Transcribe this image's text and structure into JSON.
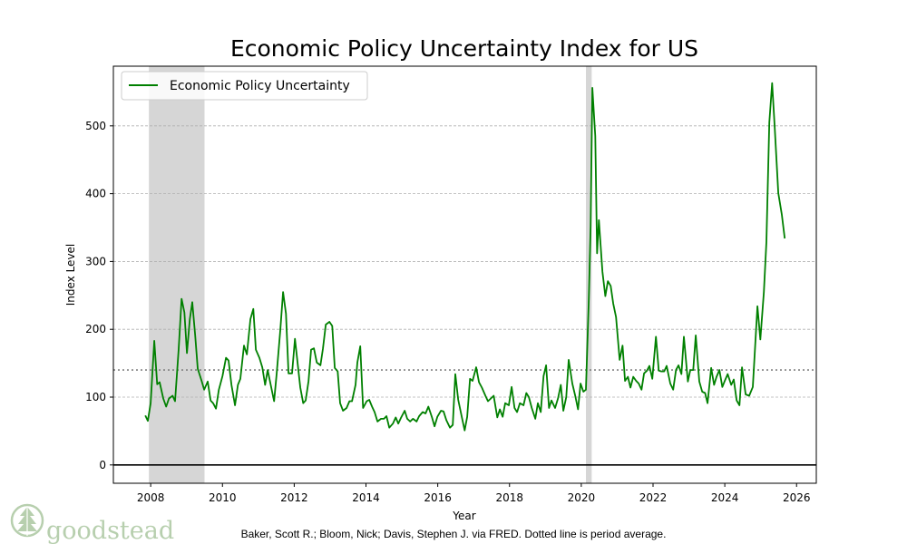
{
  "chart_data": {
    "type": "line",
    "title": "Economic Policy Uncertainty Index for US",
    "xlabel": "Year",
    "ylabel": "Index Level",
    "xlim": [
      2006.96,
      2026.55
    ],
    "ylim": [
      -27,
      588
    ],
    "xticks": [
      2008,
      2010,
      2012,
      2014,
      2016,
      2018,
      2020,
      2022,
      2024,
      2026
    ],
    "yticks": [
      0,
      100,
      200,
      300,
      400,
      500
    ],
    "grid": "horizontal dashed",
    "legend": {
      "placement": "top-left",
      "entries": [
        "Economic Policy Uncertainty"
      ]
    },
    "average": 140,
    "recessions": [
      [
        2007.95,
        2009.5
      ],
      [
        2020.13,
        2020.29
      ]
    ],
    "series": [
      {
        "name": "Economic Policy Uncertainty",
        "color": "#008000",
        "points": [
          [
            2007.85,
            73
          ],
          [
            2007.92,
            65
          ],
          [
            2008.0,
            91
          ],
          [
            2008.1,
            183
          ],
          [
            2008.18,
            119
          ],
          [
            2008.25,
            122
          ],
          [
            2008.35,
            98
          ],
          [
            2008.43,
            86
          ],
          [
            2008.51,
            98
          ],
          [
            2008.61,
            102
          ],
          [
            2008.68,
            94
          ],
          [
            2008.78,
            171
          ],
          [
            2008.86,
            245
          ],
          [
            2008.94,
            225
          ],
          [
            2009.01,
            165
          ],
          [
            2009.09,
            215
          ],
          [
            2009.16,
            240
          ],
          [
            2009.24,
            191
          ],
          [
            2009.31,
            142
          ],
          [
            2009.42,
            124
          ],
          [
            2009.49,
            111
          ],
          [
            2009.59,
            123
          ],
          [
            2009.67,
            95
          ],
          [
            2009.74,
            91
          ],
          [
            2009.82,
            83
          ],
          [
            2009.9,
            111
          ],
          [
            2010.0,
            131
          ],
          [
            2010.1,
            158
          ],
          [
            2010.17,
            154
          ],
          [
            2010.25,
            118
          ],
          [
            2010.35,
            88
          ],
          [
            2010.43,
            118
          ],
          [
            2010.5,
            127
          ],
          [
            2010.6,
            176
          ],
          [
            2010.68,
            163
          ],
          [
            2010.78,
            215
          ],
          [
            2010.86,
            230
          ],
          [
            2010.93,
            170
          ],
          [
            2011.03,
            158
          ],
          [
            2011.11,
            144
          ],
          [
            2011.19,
            118
          ],
          [
            2011.26,
            140
          ],
          [
            2011.36,
            114
          ],
          [
            2011.44,
            94
          ],
          [
            2011.51,
            134
          ],
          [
            2011.61,
            198
          ],
          [
            2011.69,
            255
          ],
          [
            2011.77,
            223
          ],
          [
            2011.84,
            135
          ],
          [
            2011.94,
            135
          ],
          [
            2012.02,
            186
          ],
          [
            2012.1,
            148
          ],
          [
            2012.17,
            114
          ],
          [
            2012.25,
            91
          ],
          [
            2012.32,
            95
          ],
          [
            2012.4,
            124
          ],
          [
            2012.47,
            170
          ],
          [
            2012.55,
            172
          ],
          [
            2012.63,
            151
          ],
          [
            2012.73,
            147
          ],
          [
            2012.8,
            171
          ],
          [
            2012.88,
            207
          ],
          [
            2012.98,
            211
          ],
          [
            2013.06,
            205
          ],
          [
            2013.13,
            143
          ],
          [
            2013.21,
            138
          ],
          [
            2013.28,
            91
          ],
          [
            2013.36,
            80
          ],
          [
            2013.46,
            84
          ],
          [
            2013.54,
            94
          ],
          [
            2013.61,
            94
          ],
          [
            2013.71,
            118
          ],
          [
            2013.76,
            151
          ],
          [
            2013.84,
            175
          ],
          [
            2013.92,
            84
          ],
          [
            2014.02,
            94
          ],
          [
            2014.09,
            96
          ],
          [
            2014.17,
            86
          ],
          [
            2014.24,
            78
          ],
          [
            2014.32,
            64
          ],
          [
            2014.42,
            68
          ],
          [
            2014.5,
            68
          ],
          [
            2014.57,
            72
          ],
          [
            2014.65,
            55
          ],
          [
            2014.75,
            61
          ],
          [
            2014.83,
            70
          ],
          [
            2014.9,
            61
          ],
          [
            2014.98,
            70
          ],
          [
            2015.08,
            80
          ],
          [
            2015.15,
            68
          ],
          [
            2015.23,
            64
          ],
          [
            2015.31,
            68
          ],
          [
            2015.41,
            64
          ],
          [
            2015.48,
            72
          ],
          [
            2015.58,
            78
          ],
          [
            2015.66,
            76
          ],
          [
            2015.74,
            86
          ],
          [
            2015.84,
            70
          ],
          [
            2015.91,
            57
          ],
          [
            2015.99,
            71
          ],
          [
            2016.09,
            80
          ],
          [
            2016.16,
            79
          ],
          [
            2016.24,
            66
          ],
          [
            2016.34,
            55
          ],
          [
            2016.42,
            59
          ],
          [
            2016.49,
            134
          ],
          [
            2016.57,
            96
          ],
          [
            2016.67,
            71
          ],
          [
            2016.75,
            51
          ],
          [
            2016.82,
            71
          ],
          [
            2016.9,
            127
          ],
          [
            2016.97,
            124
          ],
          [
            2017.07,
            144
          ],
          [
            2017.15,
            122
          ],
          [
            2017.23,
            114
          ],
          [
            2017.33,
            102
          ],
          [
            2017.4,
            94
          ],
          [
            2017.48,
            98
          ],
          [
            2017.56,
            102
          ],
          [
            2017.66,
            70
          ],
          [
            2017.73,
            82
          ],
          [
            2017.81,
            71
          ],
          [
            2017.88,
            91
          ],
          [
            2017.98,
            88
          ],
          [
            2018.06,
            115
          ],
          [
            2018.14,
            84
          ],
          [
            2018.21,
            78
          ],
          [
            2018.29,
            91
          ],
          [
            2018.39,
            88
          ],
          [
            2018.47,
            106
          ],
          [
            2018.54,
            100
          ],
          [
            2018.62,
            84
          ],
          [
            2018.72,
            68
          ],
          [
            2018.79,
            91
          ],
          [
            2018.87,
            78
          ],
          [
            2018.95,
            131
          ],
          [
            2019.02,
            147
          ],
          [
            2019.1,
            84
          ],
          [
            2019.17,
            95
          ],
          [
            2019.27,
            84
          ],
          [
            2019.35,
            98
          ],
          [
            2019.43,
            118
          ],
          [
            2019.5,
            80
          ],
          [
            2019.58,
            100
          ],
          [
            2019.65,
            155
          ],
          [
            2019.75,
            120
          ],
          [
            2019.83,
            102
          ],
          [
            2019.91,
            82
          ],
          [
            2019.98,
            120
          ],
          [
            2020.06,
            108
          ],
          [
            2020.13,
            111
          ],
          [
            2020.21,
            245
          ],
          [
            2020.26,
            352
          ],
          [
            2020.31,
            556
          ],
          [
            2020.39,
            485
          ],
          [
            2020.44,
            312
          ],
          [
            2020.49,
            361
          ],
          [
            2020.59,
            285
          ],
          [
            2020.67,
            249
          ],
          [
            2020.74,
            271
          ],
          [
            2020.82,
            264
          ],
          [
            2020.89,
            238
          ],
          [
            2020.97,
            218
          ],
          [
            2021.07,
            155
          ],
          [
            2021.15,
            176
          ],
          [
            2021.22,
            124
          ],
          [
            2021.3,
            130
          ],
          [
            2021.37,
            114
          ],
          [
            2021.45,
            130
          ],
          [
            2021.53,
            124
          ],
          [
            2021.6,
            120
          ],
          [
            2021.68,
            111
          ],
          [
            2021.75,
            135
          ],
          [
            2021.83,
            139
          ],
          [
            2021.9,
            146
          ],
          [
            2021.98,
            127
          ],
          [
            2022.08,
            189
          ],
          [
            2022.16,
            139
          ],
          [
            2022.23,
            138
          ],
          [
            2022.31,
            138
          ],
          [
            2022.38,
            146
          ],
          [
            2022.48,
            120
          ],
          [
            2022.56,
            111
          ],
          [
            2022.64,
            140
          ],
          [
            2022.71,
            147
          ],
          [
            2022.79,
            134
          ],
          [
            2022.86,
            189
          ],
          [
            2022.97,
            123
          ],
          [
            2023.04,
            140
          ],
          [
            2023.12,
            140
          ],
          [
            2023.19,
            191
          ],
          [
            2023.29,
            123
          ],
          [
            2023.37,
            108
          ],
          [
            2023.45,
            106
          ],
          [
            2023.52,
            91
          ],
          [
            2023.62,
            143
          ],
          [
            2023.7,
            118
          ],
          [
            2023.77,
            130
          ],
          [
            2023.85,
            140
          ],
          [
            2023.93,
            115
          ],
          [
            2024.0,
            124
          ],
          [
            2024.08,
            134
          ],
          [
            2024.18,
            118
          ],
          [
            2024.25,
            126
          ],
          [
            2024.33,
            95
          ],
          [
            2024.41,
            88
          ],
          [
            2024.48,
            144
          ],
          [
            2024.58,
            104
          ],
          [
            2024.68,
            102
          ],
          [
            2024.78,
            115
          ],
          [
            2024.91,
            234
          ],
          [
            2024.99,
            185
          ],
          [
            2025.09,
            255
          ],
          [
            2025.16,
            329
          ],
          [
            2025.24,
            505
          ],
          [
            2025.32,
            563
          ],
          [
            2025.39,
            499
          ],
          [
            2025.49,
            401
          ],
          [
            2025.59,
            369
          ],
          [
            2025.67,
            334
          ]
        ]
      }
    ],
    "footnote": "Baker, Scott R.; Bloom, Nick; Davis, Stephen J. via FRED. Dotted line is period average."
  },
  "logo": {
    "text": "goodstead"
  }
}
